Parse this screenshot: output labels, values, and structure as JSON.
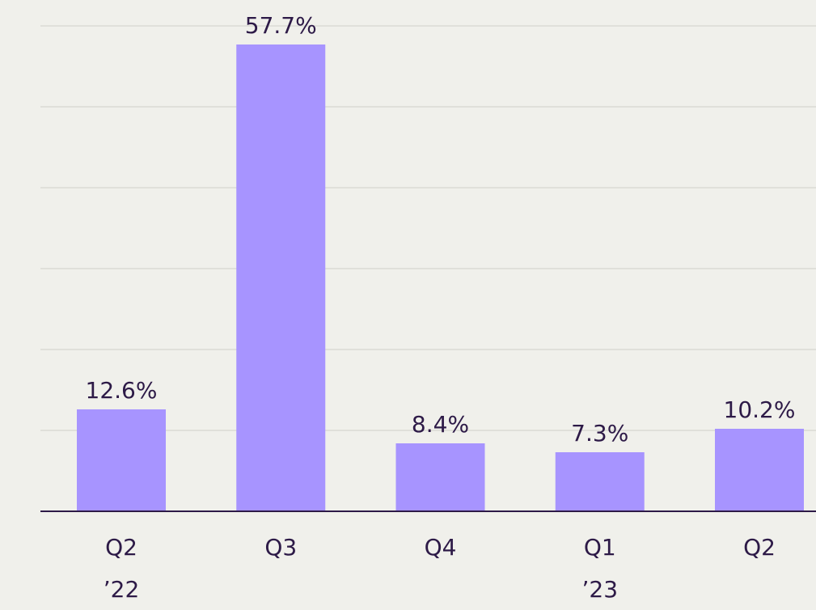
{
  "chart_data": {
    "type": "bar",
    "categories": [
      [
        "Q2",
        "’22"
      ],
      [
        "Q3"
      ],
      [
        "Q4"
      ],
      [
        "Q1",
        "’23"
      ],
      [
        "Q2"
      ]
    ],
    "values": [
      12.6,
      57.7,
      8.4,
      7.3,
      10.2
    ],
    "value_labels": [
      "12.6%",
      "57.7%",
      "8.4%",
      "7.3%",
      "10.2%"
    ],
    "color": "#a794ff",
    "ylim": [
      0,
      60
    ],
    "yticks": [
      0,
      10,
      20,
      30,
      40,
      50,
      60
    ],
    "grid": true
  }
}
